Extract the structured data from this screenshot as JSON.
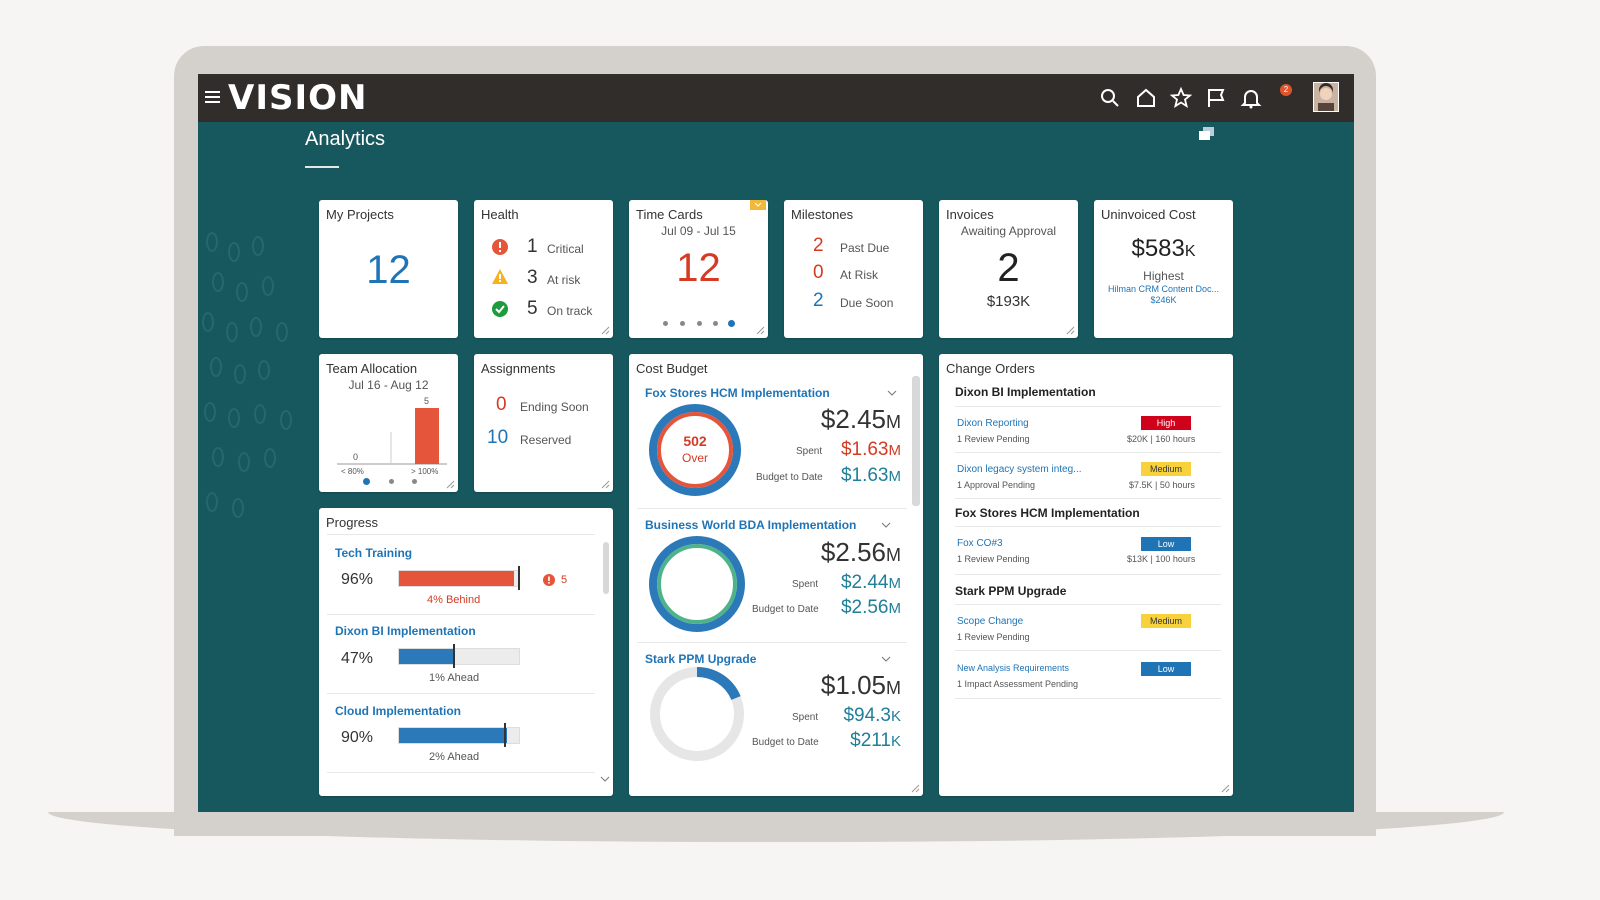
{
  "app": {
    "logo": "VISION",
    "page_title": "Analytics",
    "notification_count": "2"
  },
  "header_icons": [
    "menu-icon",
    "search-icon",
    "home-icon",
    "star-icon",
    "flag-icon",
    "bell-icon"
  ],
  "my_projects": {
    "title": "My Projects",
    "count": "12"
  },
  "health": {
    "title": "Health",
    "rows": [
      {
        "count": "1",
        "label": "Critical"
      },
      {
        "count": "3",
        "label": "At risk"
      },
      {
        "count": "5",
        "label": "On track"
      }
    ]
  },
  "time_cards": {
    "title": "Time Cards",
    "range": "Jul 09 - Jul 15",
    "count": "12"
  },
  "milestones": {
    "title": "Milestones",
    "rows": [
      {
        "count": "2",
        "label": "Past Due"
      },
      {
        "count": "0",
        "label": "At Risk"
      },
      {
        "count": "2",
        "label": "Due Soon"
      }
    ]
  },
  "invoices": {
    "title": "Invoices",
    "subtitle": "Awaiting Approval",
    "count": "2",
    "amount": "$193K"
  },
  "uninvoiced": {
    "title": "Uninvoiced Cost",
    "amount": "$583",
    "unit": "K",
    "label": "Highest",
    "project": "Hilman CRM Content Doc...",
    "project_amount": "$246K"
  },
  "team_allocation": {
    "title": "Team Allocation",
    "range": "Jul 16 - Aug 12",
    "chart_data": {
      "type": "bar",
      "categories": [
        "< 80%",
        "> 100%"
      ],
      "values": [
        0,
        5
      ],
      "title": "Team Allocation"
    }
  },
  "assignments": {
    "title": "Assignments",
    "rows": [
      {
        "count": "0",
        "label": "Ending Soon"
      },
      {
        "count": "10",
        "label": "Reserved"
      }
    ]
  },
  "cost_budget": {
    "title": "Cost Budget",
    "spent_label": "Spent",
    "btd_label": "Budget to Date",
    "projects": [
      {
        "name": "Fox Stores HCM Implementation",
        "total": "$2.45",
        "total_unit": "M",
        "spent": "$1.63",
        "spent_unit": "M",
        "btd": "$1.63",
        "btd_unit": "M",
        "over_value": "502",
        "over_label": "Over"
      },
      {
        "name": "Business World BDA Implementation",
        "total": "$2.56",
        "total_unit": "M",
        "spent": "$2.44",
        "spent_unit": "M",
        "btd": "$2.56",
        "btd_unit": "M"
      },
      {
        "name": "Stark PPM Upgrade",
        "total": "$1.05",
        "total_unit": "M",
        "spent": "$94.3",
        "spent_unit": "K",
        "btd": "$211",
        "btd_unit": "K"
      }
    ]
  },
  "progress": {
    "title": "Progress",
    "items": [
      {
        "name": "Tech Training",
        "percent": "96%",
        "fill_fraction": 0.96,
        "note": "4% Behind",
        "issues": "5",
        "color": "#e5553b"
      },
      {
        "name": "Dixon BI Implementation",
        "percent": "47%",
        "fill_fraction": 0.47,
        "note": "1%  Ahead",
        "color": "#2b79b8"
      },
      {
        "name": "Cloud Implementation",
        "percent": "90%",
        "fill_fraction": 0.9,
        "note": "2%  Ahead",
        "color": "#2b79b8"
      }
    ]
  },
  "change_orders": {
    "title": "Change Orders",
    "groups": [
      {
        "project": "Dixon BI Implementation",
        "items": [
          {
            "name": "Dixon Reporting",
            "status": "1 Review Pending",
            "priority": "High",
            "cost": "$20K | 160 hours"
          },
          {
            "name": "Dixon legacy system integ...",
            "status": "1 Approval Pending",
            "priority": "Medium",
            "cost": "$7.5K | 50 hours"
          }
        ]
      },
      {
        "project": "Fox Stores HCM Implementation",
        "items": [
          {
            "name": "Fox CO#3",
            "status": "1 Review Pending",
            "priority": "Low",
            "cost": "$13K | 100 hours"
          }
        ]
      },
      {
        "project": "Stark PPM Upgrade",
        "items": [
          {
            "name": "Scope Change",
            "status": "1 Review Pending",
            "priority": "Medium"
          },
          {
            "name": "New Analysis Requirements",
            "status": "1 Impact Assessment Pending",
            "priority": "Low"
          }
        ]
      }
    ]
  },
  "colors": {
    "header": "#312d2a",
    "background": "#17585f",
    "accent": "#1f74b6",
    "danger": "#d53a24"
  }
}
